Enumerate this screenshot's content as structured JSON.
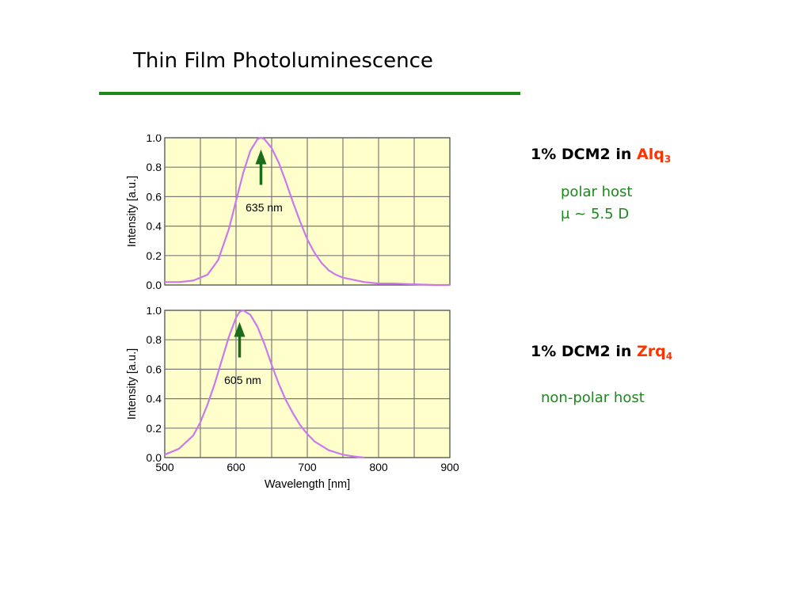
{
  "title": "Thin Film Photoluminescence",
  "colors": {
    "title_rule": "#1a8a1a",
    "plot_bg": "#ffffcc",
    "grid": "#7a7a7a",
    "curve": "#cc77ee",
    "arrow": "#1a6b1a",
    "note_text": "#1a8a1a",
    "host_name": "#ff3300"
  },
  "samples": [
    {
      "prefix": "1% DCM2 in ",
      "host": "Alq",
      "subscript": "3",
      "notes": [
        "polar host",
        "μ ~ 5.5 D"
      ]
    },
    {
      "prefix": "1% DCM2 in ",
      "host": "Zrq",
      "subscript": "4",
      "notes": [
        "non-polar host"
      ]
    }
  ],
  "chart_data": [
    {
      "type": "line",
      "title": "",
      "xlabel": "",
      "ylabel": "Intensity [a.u.]",
      "xlim": [
        500,
        900
      ],
      "ylim": [
        0,
        1.0
      ],
      "x_ticks": [
        500,
        600,
        700,
        800,
        900
      ],
      "y_ticks": [
        "0.0",
        "0.2",
        "0.4",
        "0.6",
        "0.8",
        "1.0"
      ],
      "show_x_tick_labels": false,
      "grid": true,
      "annotation": {
        "text": "635 nm",
        "x": 635
      },
      "series": [
        {
          "x": [
            500,
            520,
            540,
            560,
            575,
            590,
            600,
            610,
            620,
            630,
            635,
            640,
            650,
            660,
            670,
            680,
            690,
            700,
            710,
            720,
            730,
            740,
            750,
            760,
            780,
            800,
            820,
            850,
            880,
            900
          ],
          "y": [
            0.02,
            0.02,
            0.03,
            0.07,
            0.17,
            0.38,
            0.57,
            0.76,
            0.91,
            0.99,
            1.0,
            0.99,
            0.93,
            0.83,
            0.7,
            0.56,
            0.43,
            0.31,
            0.22,
            0.15,
            0.1,
            0.07,
            0.05,
            0.04,
            0.02,
            0.01,
            0.01,
            0.005,
            0.0,
            0.0
          ]
        }
      ]
    },
    {
      "type": "line",
      "title": "",
      "xlabel": "Wavelength [nm]",
      "ylabel": "Intensity [a.u.]",
      "xlim": [
        500,
        900
      ],
      "ylim": [
        0,
        1.0
      ],
      "x_ticks": [
        500,
        600,
        700,
        800,
        900
      ],
      "y_ticks": [
        "0.0",
        "0.2",
        "0.4",
        "0.6",
        "0.8",
        "1.0"
      ],
      "show_x_tick_labels": true,
      "grid": true,
      "annotation": {
        "text": "605 nm",
        "x": 605
      },
      "series": [
        {
          "x": [
            500,
            520,
            540,
            550,
            560,
            570,
            580,
            590,
            600,
            605,
            610,
            620,
            630,
            640,
            650,
            660,
            670,
            680,
            690,
            700,
            710,
            720,
            730,
            740,
            750,
            760,
            770,
            780
          ],
          "y": [
            0.02,
            0.06,
            0.15,
            0.24,
            0.36,
            0.5,
            0.66,
            0.82,
            0.95,
            0.99,
            1.0,
            0.97,
            0.89,
            0.77,
            0.63,
            0.5,
            0.39,
            0.3,
            0.22,
            0.16,
            0.11,
            0.08,
            0.05,
            0.035,
            0.02,
            0.012,
            0.005,
            0.0
          ]
        }
      ]
    }
  ]
}
